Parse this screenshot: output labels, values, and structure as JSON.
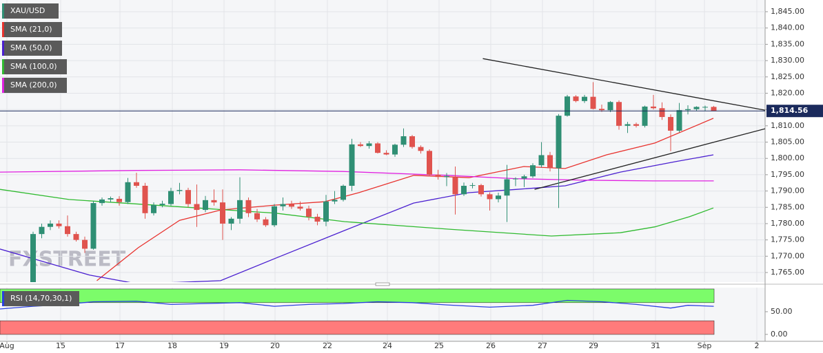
{
  "chart_data": {
    "type": "candlestick",
    "symbol": "XAU/USD",
    "up_color": "#2f8f74",
    "down_color": "#e0534e",
    "watermark": "FXSTREET",
    "ohlc": [
      [
        1762,
        1777.5,
        1760,
        1776.8
      ],
      [
        1776.8,
        1780,
        1775.5,
        1779
      ],
      [
        1779,
        1781,
        1778,
        1780
      ],
      [
        1780,
        1781,
        1778.5,
        1779.2
      ],
      [
        1779.2,
        1782.5,
        1776,
        1776.8
      ],
      [
        1776.8,
        1777.5,
        1774.5,
        1775
      ],
      [
        1775,
        1776,
        1771,
        1772.3
      ],
      [
        1772.3,
        1787,
        1772,
        1786.3
      ],
      [
        1786.3,
        1788,
        1785.5,
        1787.4
      ],
      [
        1787.4,
        1788.3,
        1786.5,
        1787.8
      ],
      [
        1787.6,
        1788.4,
        1785.5,
        1786.6
      ],
      [
        1786.6,
        1794,
        1786,
        1792.7
      ],
      [
        1792.7,
        1795.6,
        1791,
        1791.6
      ],
      [
        1791.6,
        1792.5,
        1781.5,
        1783.2
      ],
      [
        1783.2,
        1786.5,
        1782.5,
        1785.7
      ],
      [
        1785.7,
        1787,
        1785,
        1786.1
      ],
      [
        1786,
        1791,
        1785.5,
        1790
      ],
      [
        1790,
        1792.5,
        1789,
        1790.3
      ],
      [
        1790.3,
        1791,
        1785,
        1786
      ],
      [
        1786,
        1792,
        1779,
        1784.2
      ],
      [
        1784.2,
        1788.5,
        1783.5,
        1787.2
      ],
      [
        1787.2,
        1790.5,
        1785.5,
        1786.5
      ],
      [
        1786.5,
        1790.5,
        1775,
        1780
      ],
      [
        1780,
        1782,
        1778,
        1781.5
      ],
      [
        1781.5,
        1794.2,
        1780,
        1787.2
      ],
      [
        1787.2,
        1788,
        1782,
        1783.2
      ],
      [
        1783.2,
        1784.5,
        1780.5,
        1781.3
      ],
      [
        1781.3,
        1782,
        1779,
        1779.5
      ],
      [
        1779.5,
        1786,
        1779,
        1785.3
      ],
      [
        1785.3,
        1788,
        1784,
        1786
      ],
      [
        1786,
        1787,
        1784.5,
        1785.2
      ],
      [
        1785.2,
        1786.8,
        1784,
        1784.6
      ],
      [
        1784.6,
        1785.5,
        1781,
        1782.1
      ],
      [
        1782.1,
        1783,
        1779.5,
        1780.6
      ],
      [
        1780.6,
        1788.8,
        1779.2,
        1786.8
      ],
      [
        1786.8,
        1790,
        1786,
        1787.3
      ],
      [
        1787.3,
        1792,
        1786.8,
        1791.6
      ],
      [
        1791.6,
        1806,
        1790,
        1804.3
      ],
      [
        1804.3,
        1805,
        1803.5,
        1803.8
      ],
      [
        1803.8,
        1805.3,
        1803,
        1804.6
      ],
      [
        1804.6,
        1805,
        1801.5,
        1801.7
      ],
      [
        1801.7,
        1802.5,
        1801,
        1801.2
      ],
      [
        1801.2,
        1804.5,
        1800.5,
        1804.2
      ],
      [
        1804.2,
        1809.2,
        1803.5,
        1806.8
      ],
      [
        1806.8,
        1807.2,
        1803,
        1803.5
      ],
      [
        1803.5,
        1804,
        1801.5,
        1802.3
      ],
      [
        1802.3,
        1802.8,
        1794.5,
        1795
      ],
      [
        1795,
        1796.5,
        1793.5,
        1794.3
      ],
      [
        1794.3,
        1795.5,
        1791.5,
        1794.6
      ],
      [
        1794.2,
        1797.5,
        1782.8,
        1789
      ],
      [
        1789,
        1792.6,
        1788.5,
        1791.6
      ],
      [
        1791.6,
        1792.5,
        1790.8,
        1791.8
      ],
      [
        1791.8,
        1792.2,
        1788.3,
        1789
      ],
      [
        1789,
        1789.6,
        1784,
        1787.5
      ],
      [
        1787.5,
        1789.5,
        1786.5,
        1788.6
      ],
      [
        1788.6,
        1798,
        1780.5,
        1793.6
      ],
      [
        1793.6,
        1794.2,
        1791.5,
        1793.8
      ],
      [
        1793.8,
        1795,
        1791.2,
        1794.5
      ],
      [
        1794.5,
        1798.5,
        1794,
        1797.9
      ],
      [
        1797.9,
        1805,
        1797.2,
        1801
      ],
      [
        1801,
        1802,
        1796,
        1797
      ],
      [
        1797,
        1813.6,
        1784.8,
        1813.1
      ],
      [
        1813.1,
        1819.5,
        1812.8,
        1819
      ],
      [
        1819,
        1819.4,
        1817.2,
        1817.6
      ],
      [
        1817.6,
        1819.5,
        1817,
        1818.9
      ],
      [
        1818.9,
        1823.4,
        1815,
        1815.2
      ],
      [
        1815.2,
        1816.5,
        1814.3,
        1814.8
      ],
      [
        1814.8,
        1817.6,
        1814.2,
        1817.3
      ],
      [
        1817.3,
        1817.8,
        1808.8,
        1810
      ],
      [
        1810,
        1811.2,
        1807.8,
        1810.5
      ],
      [
        1810.5,
        1811,
        1809.5,
        1810
      ],
      [
        1810,
        1816.2,
        1809.5,
        1815.9
      ],
      [
        1815.9,
        1819.5,
        1815,
        1815.4
      ],
      [
        1815.4,
        1817.2,
        1811.8,
        1812.7
      ],
      [
        1812.7,
        1813.5,
        1802.2,
        1808.5
      ],
      [
        1808.5,
        1817,
        1808,
        1814.8
      ],
      [
        1814.8,
        1816.3,
        1813.5,
        1815.1
      ],
      [
        1815.1,
        1816,
        1814.6,
        1815.8
      ],
      [
        1815.8,
        1816.2,
        1814.6,
        1815.8
      ],
      [
        1815.8,
        1816.1,
        1814.5,
        1814.56
      ]
    ],
    "xlim": [
      -3.84,
      84.96
    ],
    "xticks": [
      {
        "value": -3.04,
        "label": "Aug"
      },
      {
        "value": 3.2,
        "label": "15"
      },
      {
        "value": 10.08,
        "label": "17"
      },
      {
        "value": 16.16,
        "label": "18"
      },
      {
        "value": 22.16,
        "label": "19"
      },
      {
        "value": 28.08,
        "label": "20"
      },
      {
        "value": 34.16,
        "label": "22"
      },
      {
        "value": 41.12,
        "label": "24"
      },
      {
        "value": 47.12,
        "label": "25"
      },
      {
        "value": 53.12,
        "label": "26"
      },
      {
        "value": 59.12,
        "label": "27"
      },
      {
        "value": 65.04,
        "label": "29"
      },
      {
        "value": 72.24,
        "label": "31"
      },
      {
        "value": 77.92,
        "label": "Sep"
      },
      {
        "value": 84,
        "label": "2"
      }
    ],
    "ylim": [
      1762.05,
      1848.59
    ],
    "yticks": [
      {
        "value": 1845,
        "label": "1,845.00"
      },
      {
        "value": 1840,
        "label": "1,840.00"
      },
      {
        "value": 1835,
        "label": "1,835.00"
      },
      {
        "value": 1830,
        "label": "1,830.00"
      },
      {
        "value": 1825,
        "label": "1,825.00"
      },
      {
        "value": 1820,
        "label": "1,820.00"
      },
      {
        "value": 1815,
        "label": "1,815.00"
      },
      {
        "value": 1810,
        "label": "1,810.00"
      },
      {
        "value": 1805,
        "label": "1,805.00"
      },
      {
        "value": 1800,
        "label": "1,800.00"
      },
      {
        "value": 1795,
        "label": "1,795.00"
      },
      {
        "value": 1790,
        "label": "1,790.00"
      },
      {
        "value": 1785,
        "label": "1,785.00"
      },
      {
        "value": 1780,
        "label": "1,780.00"
      },
      {
        "value": 1775,
        "label": "1,775.00"
      },
      {
        "value": 1770,
        "label": "1,770.00"
      },
      {
        "value": 1765,
        "label": "1,765.00"
      }
    ],
    "grid": true,
    "last_price": {
      "value": 1814.56,
      "label": "1,814.56",
      "color": "#1b2a5c"
    },
    "overlays": [
      {
        "name": "SMA (21,0)",
        "color": "#e8322e",
        "x": [
          7.4,
          12.2,
          17,
          21.8,
          28.2,
          33.8,
          37.8,
          44.2,
          50.6,
          56.96,
          61.76,
          66.56,
          72.16,
          78.96
        ],
        "values": [
          1762.5,
          1772.6,
          1781,
          1784.2,
          1785.7,
          1786.7,
          1789.5,
          1794.8,
          1794.1,
          1797.5,
          1796.9,
          1801.1,
          1804.7,
          1812.3
        ]
      },
      {
        "name": "SMA (50,0)",
        "color": "#4a1fd0",
        "x": [
          -3.84,
          6.56,
          12.16,
          21.76,
          28.16,
          36.16,
          44.16,
          50.56,
          56.16,
          61.76,
          68.16,
          74.56,
          78.96
        ],
        "values": [
          1772.2,
          1764.2,
          1761.5,
          1762.5,
          1769.4,
          1777.9,
          1786.3,
          1789.5,
          1790.5,
          1791.6,
          1795.8,
          1799,
          1801.1
        ]
      },
      {
        "name": "SMA (100,0)",
        "color": "#2fba2f",
        "x": [
          -3.84,
          4.16,
          16.16,
          28.16,
          36.16,
          48.16,
          60.16,
          68.16,
          72.16,
          76.16,
          78.96
        ],
        "values": [
          1790.5,
          1787.4,
          1785.3,
          1783.2,
          1780.6,
          1778.3,
          1776.2,
          1777.2,
          1779,
          1782.1,
          1784.8
        ]
      },
      {
        "name": "SMA (200,0)",
        "color": "#e020e0",
        "x": [
          -3.84,
          12,
          24,
          36,
          48,
          56,
          64,
          72,
          79
        ],
        "values": [
          1795.8,
          1796.3,
          1796.5,
          1796,
          1794.8,
          1793.8,
          1793.3,
          1793.1,
          1793.1
        ]
      }
    ],
    "trendlines": [
      {
        "x": [
          52.2,
          84.96
        ],
        "values": [
          1830.6,
          1814.8
        ]
      },
      {
        "x": [
          58.2,
          84.96
        ],
        "values": [
          1790.5,
          1809.1
        ]
      }
    ],
    "rsi": {
      "name": "RSI (14,70,30,1)",
      "color": "#2a3fe0",
      "ylim": [
        -15.2,
        103
      ],
      "yticks": [
        {
          "value": 50,
          "label": "50.00"
        },
        {
          "value": 0,
          "label": "0.00"
        }
      ],
      "bands": [
        {
          "from": 70,
          "to": 100,
          "color": "#7cfc6a"
        },
        {
          "from": 0,
          "to": 30,
          "color": "#ff7b7b"
        }
      ],
      "x": [
        -3.84,
        0,
        3,
        7,
        12,
        16,
        20,
        24,
        28,
        32,
        36,
        40,
        44,
        48,
        53,
        58,
        62,
        66,
        70,
        74,
        76,
        79
      ],
      "values": [
        56,
        62,
        65,
        72,
        73,
        66,
        68,
        70,
        62,
        66,
        68,
        72,
        70,
        65,
        60,
        64,
        75,
        72,
        66,
        58,
        64,
        62
      ]
    }
  }
}
